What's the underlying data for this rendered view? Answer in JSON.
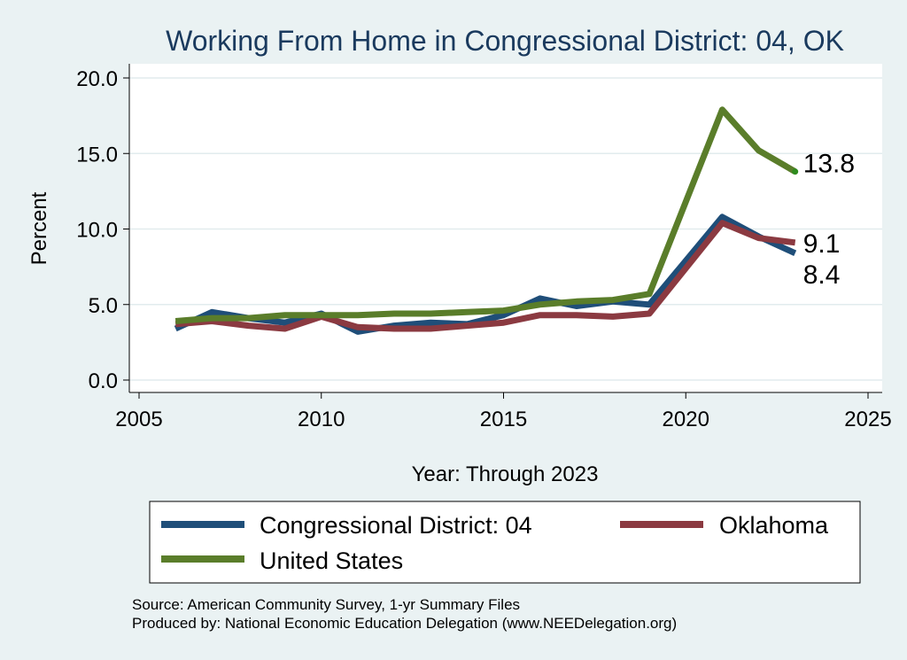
{
  "chart_data": {
    "type": "line",
    "title": "Working From Home in Congressional District: 04, OK",
    "xlabel": "Year: Through 2023",
    "ylabel": "Percent",
    "xlim": [
      2005,
      2025
    ],
    "ylim": [
      0,
      20
    ],
    "x_ticks": [
      "2005",
      "2010",
      "2015",
      "2020",
      "2025"
    ],
    "y_ticks": [
      "0.0",
      "5.0",
      "10.0",
      "15.0",
      "20.0"
    ],
    "grid": true,
    "legend_position": "bottom",
    "series": [
      {
        "name": "Congressional District: 04",
        "color": "#1f4e79",
        "x": [
          2006,
          2007,
          2008,
          2009,
          2010,
          2011,
          2012,
          2013,
          2014,
          2015,
          2016,
          2017,
          2018,
          2019,
          2021,
          2022,
          2023
        ],
        "y": [
          3.4,
          4.5,
          4.1,
          3.8,
          4.4,
          3.2,
          3.6,
          3.8,
          3.7,
          4.3,
          5.4,
          4.9,
          5.2,
          5.0,
          10.8,
          9.5,
          8.4
        ],
        "end_label": "8.4"
      },
      {
        "name": "Oklahoma",
        "color": "#8b3a41",
        "x": [
          2006,
          2007,
          2008,
          2009,
          2010,
          2011,
          2012,
          2013,
          2014,
          2015,
          2016,
          2017,
          2018,
          2019,
          2021,
          2022,
          2023
        ],
        "y": [
          3.7,
          3.9,
          3.6,
          3.4,
          4.2,
          3.5,
          3.4,
          3.4,
          3.6,
          3.8,
          4.3,
          4.3,
          4.2,
          4.4,
          10.4,
          9.4,
          9.1
        ],
        "end_label": "9.1"
      },
      {
        "name": "United States",
        "color": "#5a7d2a",
        "x": [
          2006,
          2007,
          2008,
          2009,
          2010,
          2011,
          2012,
          2013,
          2014,
          2015,
          2016,
          2017,
          2018,
          2019,
          2021,
          2022,
          2023
        ],
        "y": [
          3.9,
          4.1,
          4.1,
          4.3,
          4.3,
          4.3,
          4.4,
          4.4,
          4.5,
          4.6,
          5.0,
          5.2,
          5.3,
          5.7,
          17.9,
          15.2,
          13.8
        ],
        "end_label": "13.8"
      }
    ]
  },
  "notes": {
    "source": "Source: American Community Survey, 1-yr Summary Files",
    "produced": "Produced by: National Economic Education Delegation (www.NEEDelegation.org)"
  }
}
